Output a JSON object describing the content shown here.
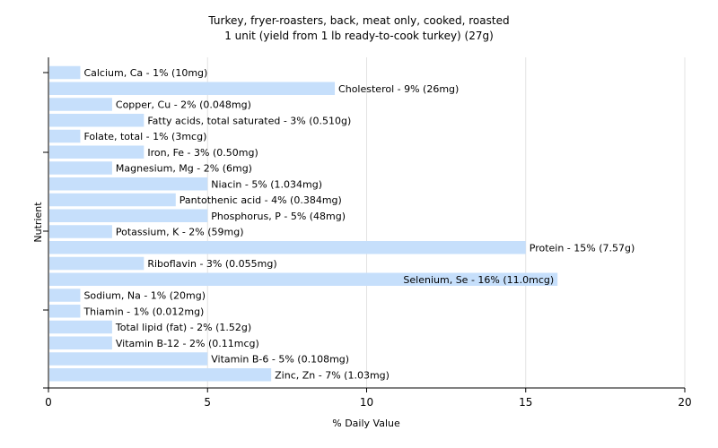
{
  "chart_data": {
    "type": "bar",
    "orientation": "horizontal",
    "title": "Turkey, fryer-roasters, back, meat only, cooked, roasted",
    "subtitle": "1 unit (yield from 1 lb ready-to-cook turkey) (27g)",
    "xlabel": "% Daily Value",
    "ylabel": "Nutrient",
    "xlim": [
      0,
      20
    ],
    "xticks": [
      "0",
      "5",
      "10",
      "15",
      "20"
    ],
    "grid": true,
    "bar_color": "#c6dffb",
    "categories": [
      "Calcium, Ca",
      "Cholesterol",
      "Copper, Cu",
      "Fatty acids, total saturated",
      "Folate, total",
      "Iron, Fe",
      "Magnesium, Mg",
      "Niacin",
      "Pantothenic acid",
      "Phosphorus, P",
      "Potassium, K",
      "Protein",
      "Riboflavin",
      "Selenium, Se",
      "Sodium, Na",
      "Thiamin",
      "Total lipid (fat)",
      "Vitamin B-12",
      "Vitamin B-6",
      "Zinc, Zn"
    ],
    "values": [
      1,
      9,
      2,
      3,
      1,
      3,
      2,
      5,
      4,
      5,
      2,
      15,
      3,
      16,
      1,
      1,
      2,
      2,
      5,
      7
    ],
    "labels": [
      "Calcium, Ca - 1% (10mg)",
      "Cholesterol - 9% (26mg)",
      "Copper, Cu - 2% (0.048mg)",
      "Fatty acids, total saturated - 3% (0.510g)",
      "Folate, total - 1% (3mcg)",
      "Iron, Fe - 3% (0.50mg)",
      "Magnesium, Mg - 2% (6mg)",
      "Niacin - 5% (1.034mg)",
      "Pantothenic acid - 4% (0.384mg)",
      "Phosphorus, P - 5% (48mg)",
      "Potassium, K - 2% (59mg)",
      "Protein - 15% (7.57g)",
      "Riboflavin - 3% (0.055mg)",
      "Selenium, Se - 16% (11.0mcg)",
      "Sodium, Na - 1% (20mg)",
      "Thiamin - 1% (0.012mg)",
      "Total lipid (fat) - 2% (1.52g)",
      "Vitamin B-12 - 2% (0.11mcg)",
      "Vitamin B-6 - 5% (0.108mg)",
      "Zinc, Zn - 7% (1.03mg)"
    ]
  }
}
